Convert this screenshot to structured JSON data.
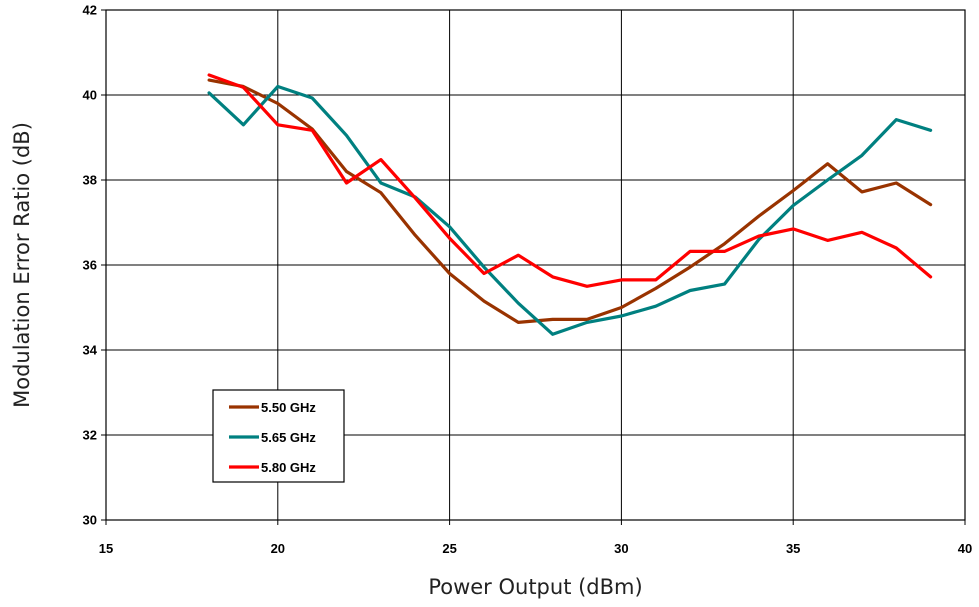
{
  "chart_data": {
    "type": "line",
    "title": "",
    "xlabel": "Power Output (dBm)",
    "ylabel": "Modulation Error Ratio (dB)",
    "xlim": [
      15,
      40
    ],
    "ylim": [
      30,
      42
    ],
    "xticks": [
      15,
      20,
      25,
      30,
      35,
      40
    ],
    "yticks": [
      30,
      32,
      34,
      36,
      38,
      40,
      42
    ],
    "grid": true,
    "legend_position": "lower-left",
    "x": [
      18,
      19,
      20,
      21,
      22,
      23,
      24,
      25,
      26,
      27,
      28,
      29,
      30,
      31,
      32,
      33,
      34,
      35,
      36,
      37,
      38,
      39
    ],
    "series": [
      {
        "name": "5.50 GHz",
        "color": "#993300",
        "values": [
          40.35,
          40.2,
          39.8,
          39.2,
          38.2,
          37.7,
          36.7,
          35.8,
          35.15,
          34.65,
          34.72,
          34.72,
          35.0,
          35.45,
          35.95,
          36.5,
          37.15,
          37.75,
          38.38,
          37.72,
          37.93,
          37.42
        ]
      },
      {
        "name": "5.65 GHz",
        "color": "#008080",
        "values": [
          40.05,
          39.3,
          40.2,
          39.93,
          39.05,
          37.93,
          37.6,
          36.9,
          35.95,
          35.1,
          34.37,
          34.65,
          34.8,
          35.03,
          35.4,
          35.55,
          36.6,
          37.4,
          38.0,
          38.58,
          39.42,
          39.17
        ]
      },
      {
        "name": "5.80 GHz",
        "color": "#ff0000",
        "values": [
          40.47,
          40.18,
          39.3,
          39.17,
          37.93,
          38.48,
          37.58,
          36.63,
          35.8,
          36.23,
          35.72,
          35.5,
          35.65,
          35.65,
          36.32,
          36.32,
          36.68,
          36.85,
          36.58,
          36.77,
          36.4,
          35.72
        ]
      }
    ]
  }
}
